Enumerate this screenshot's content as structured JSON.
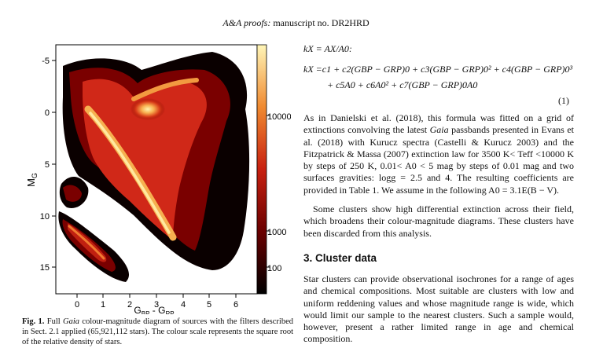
{
  "header": {
    "journal": "A&A proofs:",
    "manuscript": "manuscript no. DR2HRD"
  },
  "figure": {
    "y_label": "M",
    "y_label_sub": "G",
    "x_label_main": "G",
    "x_label_sub1": "BP",
    "x_label_sep": " - G",
    "x_label_sub2": "RP",
    "y_ticks": [
      "-5",
      "0",
      "5",
      "10",
      "15"
    ],
    "x_ticks": [
      "0",
      "1",
      "2",
      "3",
      "4",
      "5",
      "6"
    ],
    "colorbar_ticks": [
      "10000",
      "1000",
      "100"
    ]
  },
  "chart_data": {
    "type": "heatmap",
    "title": "",
    "xlabel": "GBP - GRP",
    "ylabel": "MG",
    "xlim": [
      -0.5,
      6.5
    ],
    "ylim": [
      16,
      -6
    ],
    "y_inverted": true,
    "colorbar_scale": "sqrt",
    "colorbar_ticks": [
      100,
      1000,
      10000
    ],
    "colormap": [
      "#000000",
      "#5a0000",
      "#b01010",
      "#e85020",
      "#f8a040",
      "#fff5b0"
    ],
    "grid": false
  },
  "caption": {
    "label": "Fig. 1.",
    "text_before_italic": " Full ",
    "italic_word": "Gaia",
    "text_after_italic": " colour-magnitude diagram of sources with the filters described in Sect. 2.1 applied (65,921,112 stars). The colour scale represents the square root of the relative density of stars."
  },
  "equations": {
    "line1": "kX = AX/A0:",
    "line2": "kX =c1 + c2(GBP − GRP)0 + c3(GBP − GRP)0² + c4(GBP − GRP)0³",
    "line3": "+ c5A0 + c6A0² + c7(GBP − GRP)0A0",
    "number": "(1)"
  },
  "paragraphs": {
    "p1_a": "As in Danielski et al. (2018), this formula was fitted on a grid of extinctions convolving the latest ",
    "p1_gaia": "Gaia",
    "p1_b": " passbands presented in Evans et al. (2018) with Kurucz spectra (Castelli & Kurucz 2003) and the Fitzpatrick & Massa (2007) extinction law for 3500 K< Teff <10000 K by steps of 250 K, 0.01< A0 < 5 mag by steps of 0.01 mag and two surfaces gravities: logg = 2.5 and 4. The resulting coefficients are provided in Table 1. We assume in the following A0 = 3.1E(B − V).",
    "p2": "Some clusters show high differential extinction across their field, which broadens their colour-magnitude diagrams. These clusters have been discarded from this analysis.",
    "section_title": "3. Cluster data",
    "p3": "Star clusters can provide observational isochrones for a range of ages and chemical compositions. Most suitable are clusters with low and uniform reddening values and whose magnitude range is wide, which would limit our sample to the nearest clusters. Such a sample would, however, present a rather limited range in age and chemical composition."
  }
}
